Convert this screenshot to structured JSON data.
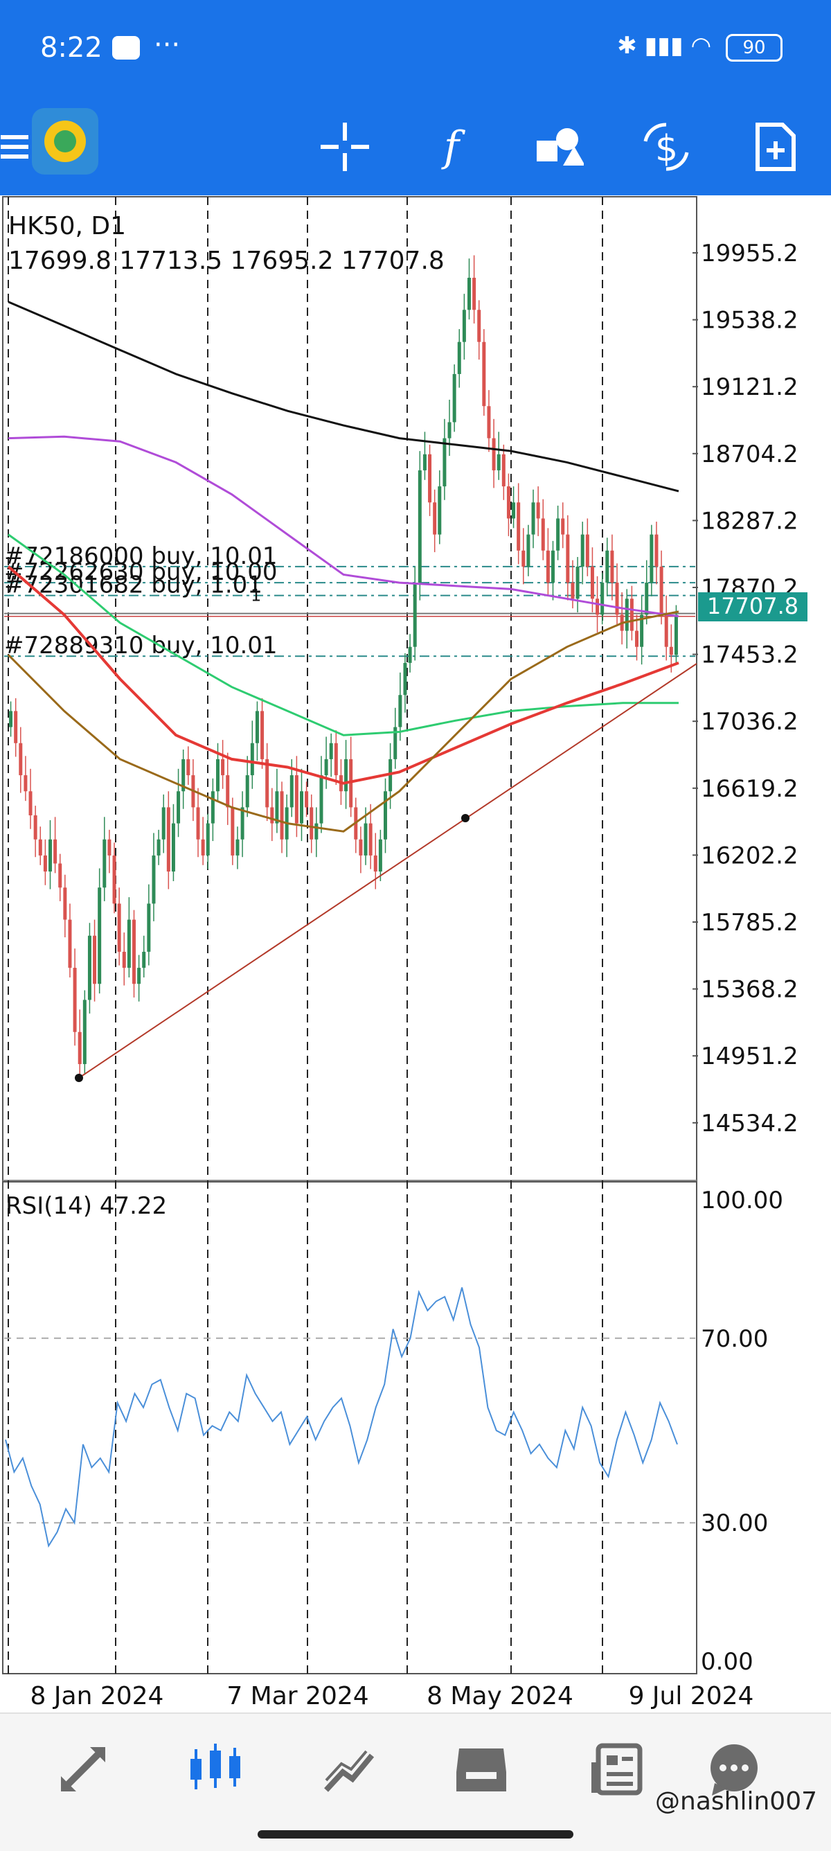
{
  "status_bar": {
    "time": "8:22",
    "more": "···",
    "battery": "90"
  },
  "toolbar": {
    "menu_icon": "hamburger-icon",
    "tools": [
      "crosshair-icon",
      "indicators-icon",
      "objects-icon",
      "trade-icon",
      "new-order-icon"
    ],
    "function_glyph": "f"
  },
  "chart": {
    "symbol": "HK50, D1",
    "ohlc": "17699.8 17713.5 17695.2 17707.8",
    "price_ticks": [
      "19955.2",
      "19538.2",
      "19121.2",
      "18704.2",
      "18287.2",
      "17870.2",
      "17453.2",
      "17036.2",
      "16619.2",
      "16202.2",
      "15785.2",
      "15368.2",
      "14951.2",
      "14534.2"
    ],
    "current_price": "17707.8",
    "orders": [
      {
        "label": "#72186000 buy, 10.01",
        "price": 18000
      },
      {
        "label": "#72262630 buy, 10.00",
        "price": 17900
      },
      {
        "label": "#72301682 buy, 1.01",
        "price": 17820
      },
      {
        "label": "#72889310 buy, 10.01",
        "price": 17442
      }
    ],
    "order_suffix": "1",
    "date_labels": [
      "8 Jan 2024",
      "7 Mar 2024",
      "8 May 2024",
      "9 Jul 2024"
    ],
    "rsi_label": "RSI(14) 47.22",
    "rsi_ticks": [
      "100.00",
      "70.00",
      "30.00",
      "0.00"
    ],
    "colors": {
      "bull": "#2e8b57",
      "bear": "#d9534f",
      "ma_black": "#111111",
      "ma_purple": "#b04cd8",
      "ma_green": "#2ecc71",
      "ma_red": "#e53935",
      "ma_brown": "#9a6a1a",
      "rsi": "#4a8fd9",
      "price_badge": "#1b9a8e"
    }
  },
  "chart_data": {
    "type": "candlestick",
    "ylim": [
      14300,
      20200
    ],
    "grid": true,
    "trendline": {
      "from": 14790,
      "to": 17430
    },
    "bottom_nav": [
      "quotes-icon",
      "chart-icon",
      "trade-icon",
      "history-icon",
      "news-icon",
      "chat-icon"
    ]
  },
  "watermark": "@nashlin007"
}
